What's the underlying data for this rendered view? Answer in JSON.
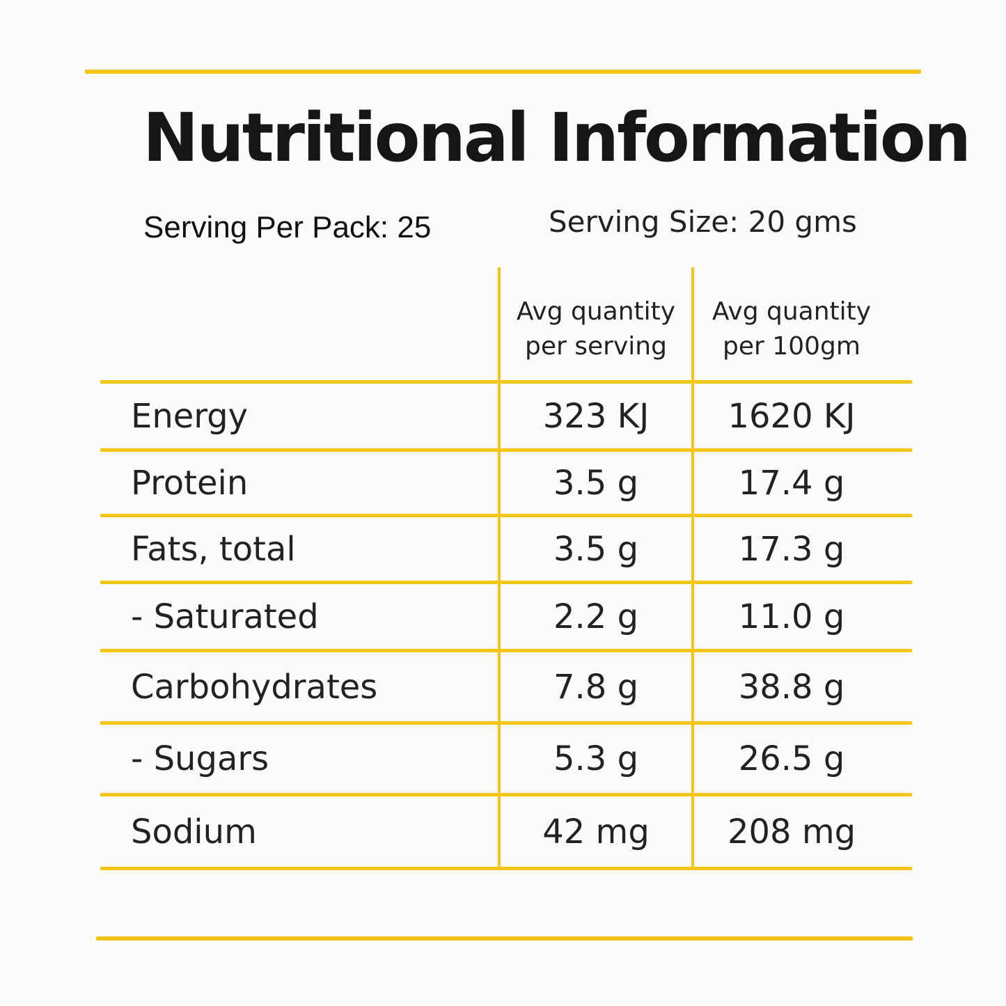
{
  "title": "Nutritional Information",
  "serving_per_pack": "Serving Per Pack: 25",
  "serving_size": "Serving Size: 20 gms",
  "columns": [
    {
      "line1": "Avg quantity",
      "line2": "per serving"
    },
    {
      "line1": "Avg quantity",
      "line2": "per 100gm"
    }
  ],
  "rows": [
    {
      "name": "Energy",
      "per_serving": "323 KJ",
      "per_100g": "1620 KJ"
    },
    {
      "name": "Protein",
      "per_serving": "3.5 g",
      "per_100g": "17.4 g"
    },
    {
      "name": "Fats, total",
      "per_serving": "3.5 g",
      "per_100g": "17.3 g"
    },
    {
      "name": "- Saturated",
      "per_serving": "2.2 g",
      "per_100g": "11.0 g"
    },
    {
      "name": "Carbohydrates",
      "per_serving": "7.8 g",
      "per_100g": "38.8 g"
    },
    {
      "name": "- Sugars",
      "per_serving": "5.3 g",
      "per_100g": "26.5 g"
    },
    {
      "name": "Sodium",
      "per_serving": "42 mg",
      "per_100g": "208 mg"
    }
  ],
  "colors": {
    "accent": "#f5c418",
    "text": "#222222",
    "background": "#fbfaf8"
  }
}
